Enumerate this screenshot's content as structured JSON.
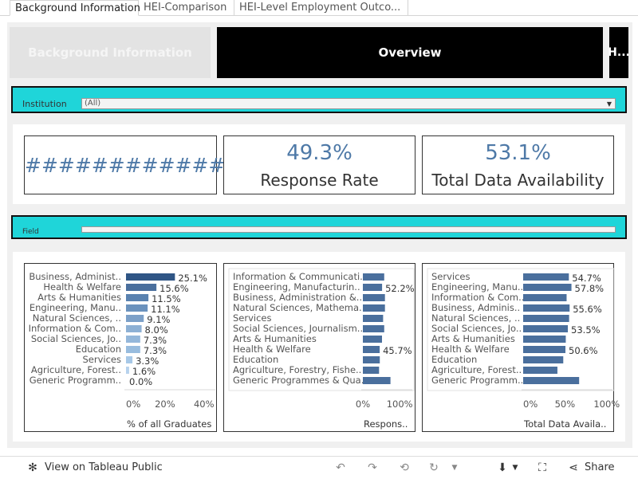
{
  "tabs": [
    {
      "label": "Background Information",
      "active": true
    },
    {
      "label": "HEI-Comparison",
      "active": false
    },
    {
      "label": "HEI-Level Employment Outco...",
      "active": false
    }
  ],
  "nav": {
    "background": "Background Information",
    "overview": "Overview",
    "next": "H..."
  },
  "filters": {
    "institution_label": "Institution",
    "institution_value": "(All)",
    "field_label": "Field"
  },
  "kpis": {
    "graduates": "############",
    "response_value": "49.3%",
    "response_label": "Response Rate",
    "availability_value": "53.1%",
    "availability_label": "Total Data Availability"
  },
  "colors": {
    "accent_cyan": "#1fd5d9",
    "kpi_blue": "#4e79a7",
    "bar_blue": "#4a6f9d",
    "bar_dark": "#2f5585",
    "bar_light": "#9dc1e3"
  },
  "chart_data": [
    {
      "type": "bar",
      "orientation": "horizontal",
      "categories": [
        "Business, Administ..",
        "Health & Welfare",
        "Arts & Humanities",
        "Engineering, Manu..",
        "Natural Sciences, ..",
        "Information & Com..",
        "Social Sciences, Jo..",
        "Education",
        "Services",
        "Agriculture, Forest..",
        "Generic Programm.."
      ],
      "values": [
        25.1,
        15.6,
        11.5,
        11.1,
        9.1,
        8.0,
        7.3,
        7.3,
        3.3,
        1.6,
        0.0
      ],
      "data_labels": [
        "25.1%",
        "15.6%",
        "11.5%",
        "11.1%",
        "9.1%",
        "8.0%",
        "7.3%",
        "7.3%",
        "3.3%",
        "1.6%",
        "0.0%"
      ],
      "xlim": [
        0,
        45
      ],
      "ticks": [
        0,
        20,
        40
      ],
      "tick_labels": [
        "0%",
        "20%",
        "40%"
      ],
      "xlabel": "% of all Graduates"
    },
    {
      "type": "bar",
      "orientation": "horizontal",
      "categories": [
        "Information & Communicati..",
        "Engineering, Manufacturin..",
        "Business, Administration &..",
        "Natural Sciences, Mathema..",
        "Services",
        "Social Sciences, Journalism..",
        "Arts & Humanities",
        "Health & Welfare",
        "Education",
        "Agriculture, Forestry, Fishe..",
        "Generic Programmes & Qua.."
      ],
      "values": [
        58,
        52.2,
        60,
        60,
        55,
        58,
        52,
        45.7,
        46,
        44,
        75
      ],
      "data_labels": [
        "",
        "52.2%",
        "",
        "",
        "",
        "",
        "",
        "45.7%",
        "",
        "",
        ""
      ],
      "xlim": [
        0,
        130
      ],
      "ticks": [
        0,
        100
      ],
      "tick_labels": [
        "0%",
        "100%"
      ],
      "xlabel": "Respons.."
    },
    {
      "type": "bar",
      "orientation": "horizontal",
      "categories": [
        "Services",
        "Engineering, Manu..",
        "Information & Com..",
        "Business, Adminis..",
        "Natural Sciences, ..",
        "Social Sciences, Jo..",
        "Arts & Humanities",
        "Health & Welfare",
        "Education",
        "Agriculture, Forest..",
        "Generic Programm.."
      ],
      "values": [
        54.7,
        57.8,
        52,
        55.6,
        55,
        53.5,
        51,
        50.6,
        48,
        41,
        67
      ],
      "data_labels": [
        "54.7%",
        "57.8%",
        "",
        "55.6%",
        "",
        "53.5%",
        "",
        "50.6%",
        "",
        "",
        ""
      ],
      "xlim": [
        0,
        105
      ],
      "ticks": [
        0,
        50,
        100
      ],
      "tick_labels": [
        "0%",
        "50%",
        "100%"
      ],
      "xlabel": "Total Data Availa.."
    }
  ],
  "footer": {
    "view_label": "View on Tableau Public",
    "share_label": "Share"
  }
}
